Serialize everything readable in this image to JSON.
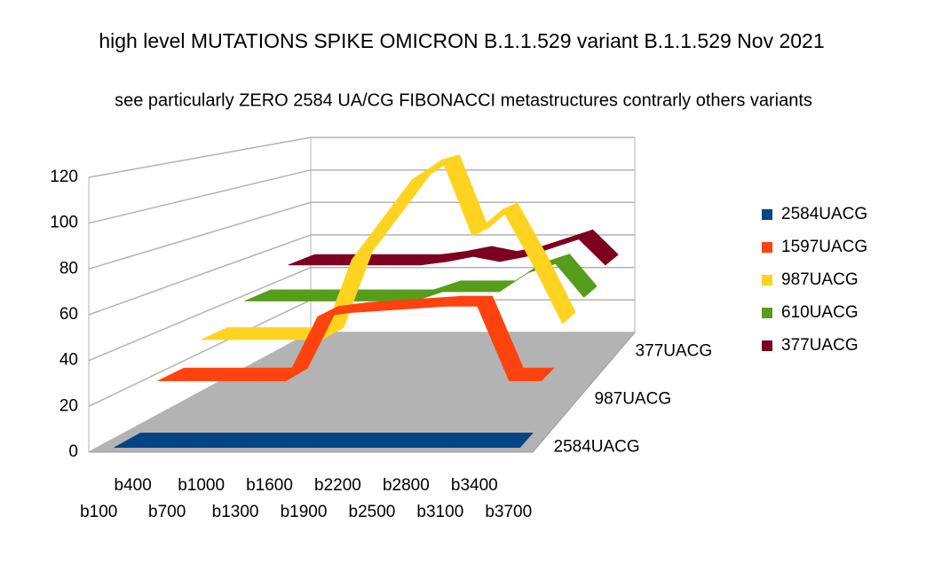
{
  "chart_data": {
    "type": "ribbon3d",
    "title": "high level MUTATIONS SPIKE OMICRON B.1.1.529 variant B.1.1.529 Nov 2021",
    "subtitle": "see particularly ZERO 2584 UA/CG FIBONACCI metastructures contrarly others variants",
    "categories": [
      "b100",
      "b400",
      "b700",
      "b1000",
      "b1300",
      "b1600",
      "b1900",
      "b2200",
      "b2500",
      "b2800",
      "b3100",
      "b3400",
      "b3700"
    ],
    "series": [
      {
        "name": "2584UACG",
        "color": "#004586",
        "values": [
          0,
          0,
          0,
          0,
          0,
          0,
          0,
          0,
          0,
          0,
          0,
          0,
          0
        ]
      },
      {
        "name": "1597UACG",
        "color": "#ff420e",
        "values": [
          20,
          20,
          20,
          20,
          20,
          50,
          52,
          53,
          54,
          55,
          55,
          20,
          20
        ]
      },
      {
        "name": "987UACG",
        "color": "#ffd320",
        "values": [
          30,
          30,
          30,
          30,
          30,
          70,
          90,
          110,
          120,
          82,
          95,
          68,
          38
        ]
      },
      {
        "name": "610UACG",
        "color": "#579d1c",
        "values": [
          40,
          40,
          40,
          40,
          40,
          40,
          40,
          45,
          45,
          45,
          55,
          60,
          42
        ]
      },
      {
        "name": "377UACG",
        "color": "#7e0021",
        "values": [
          50,
          50,
          50,
          50,
          50,
          50,
          52,
          55,
          52,
          55,
          60,
          65,
          50
        ]
      }
    ],
    "ylim": [
      0,
      120
    ],
    "yticks": [
      0,
      20,
      40,
      60,
      80,
      100,
      120
    ],
    "grid": true,
    "legend": "right"
  }
}
